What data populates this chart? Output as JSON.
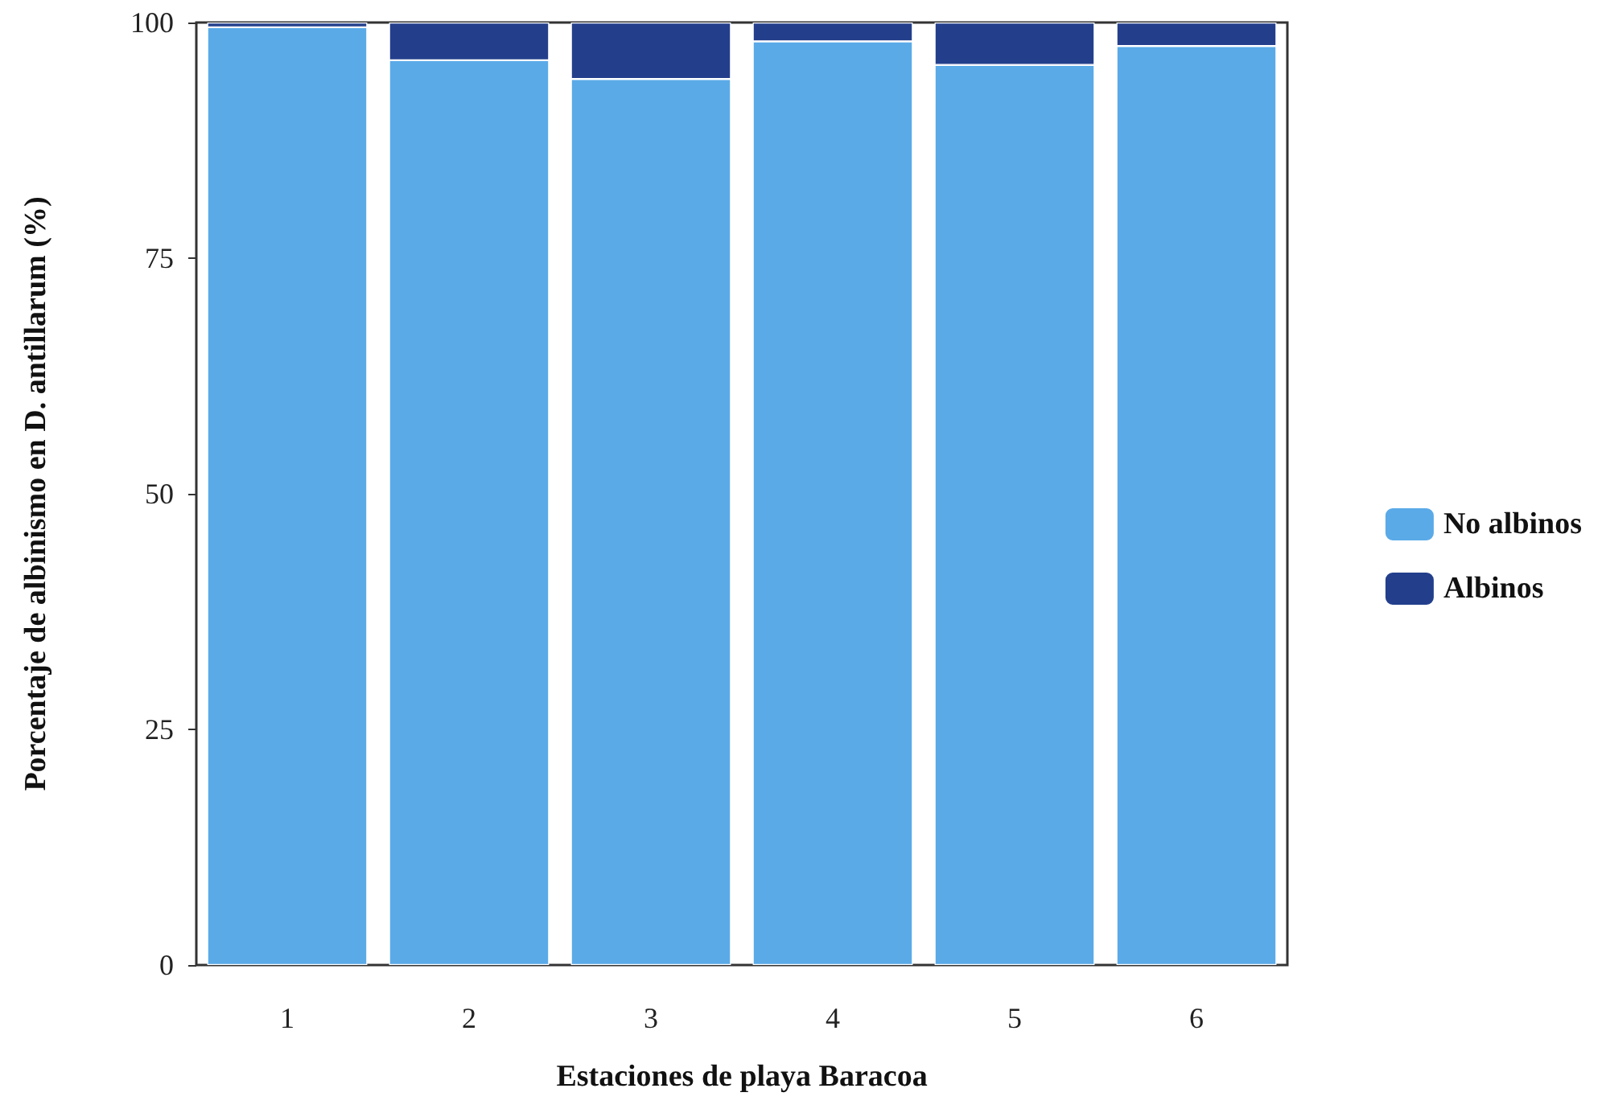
{
  "chart_data": {
    "type": "bar",
    "stacked": true,
    "xlabel": "Estaciones de playa Baracoa",
    "ylabel": "Porcentaje de albinismo en D. antillarum (%)",
    "categories": [
      "1",
      "2",
      "3",
      "4",
      "5",
      "6"
    ],
    "series": [
      {
        "name": "No albinos",
        "color": "#5aaae8",
        "values": [
          99.5,
          96,
          94,
          98,
          95.5,
          97.5
        ]
      },
      {
        "name": "Albinos",
        "color": "#233f8c",
        "values": [
          0.5,
          4,
          6,
          2,
          4.5,
          2.5
        ]
      }
    ],
    "ylim": [
      0,
      100
    ],
    "yticks": [
      0,
      25,
      50,
      75,
      100
    ],
    "grid": false,
    "legend": "right"
  }
}
